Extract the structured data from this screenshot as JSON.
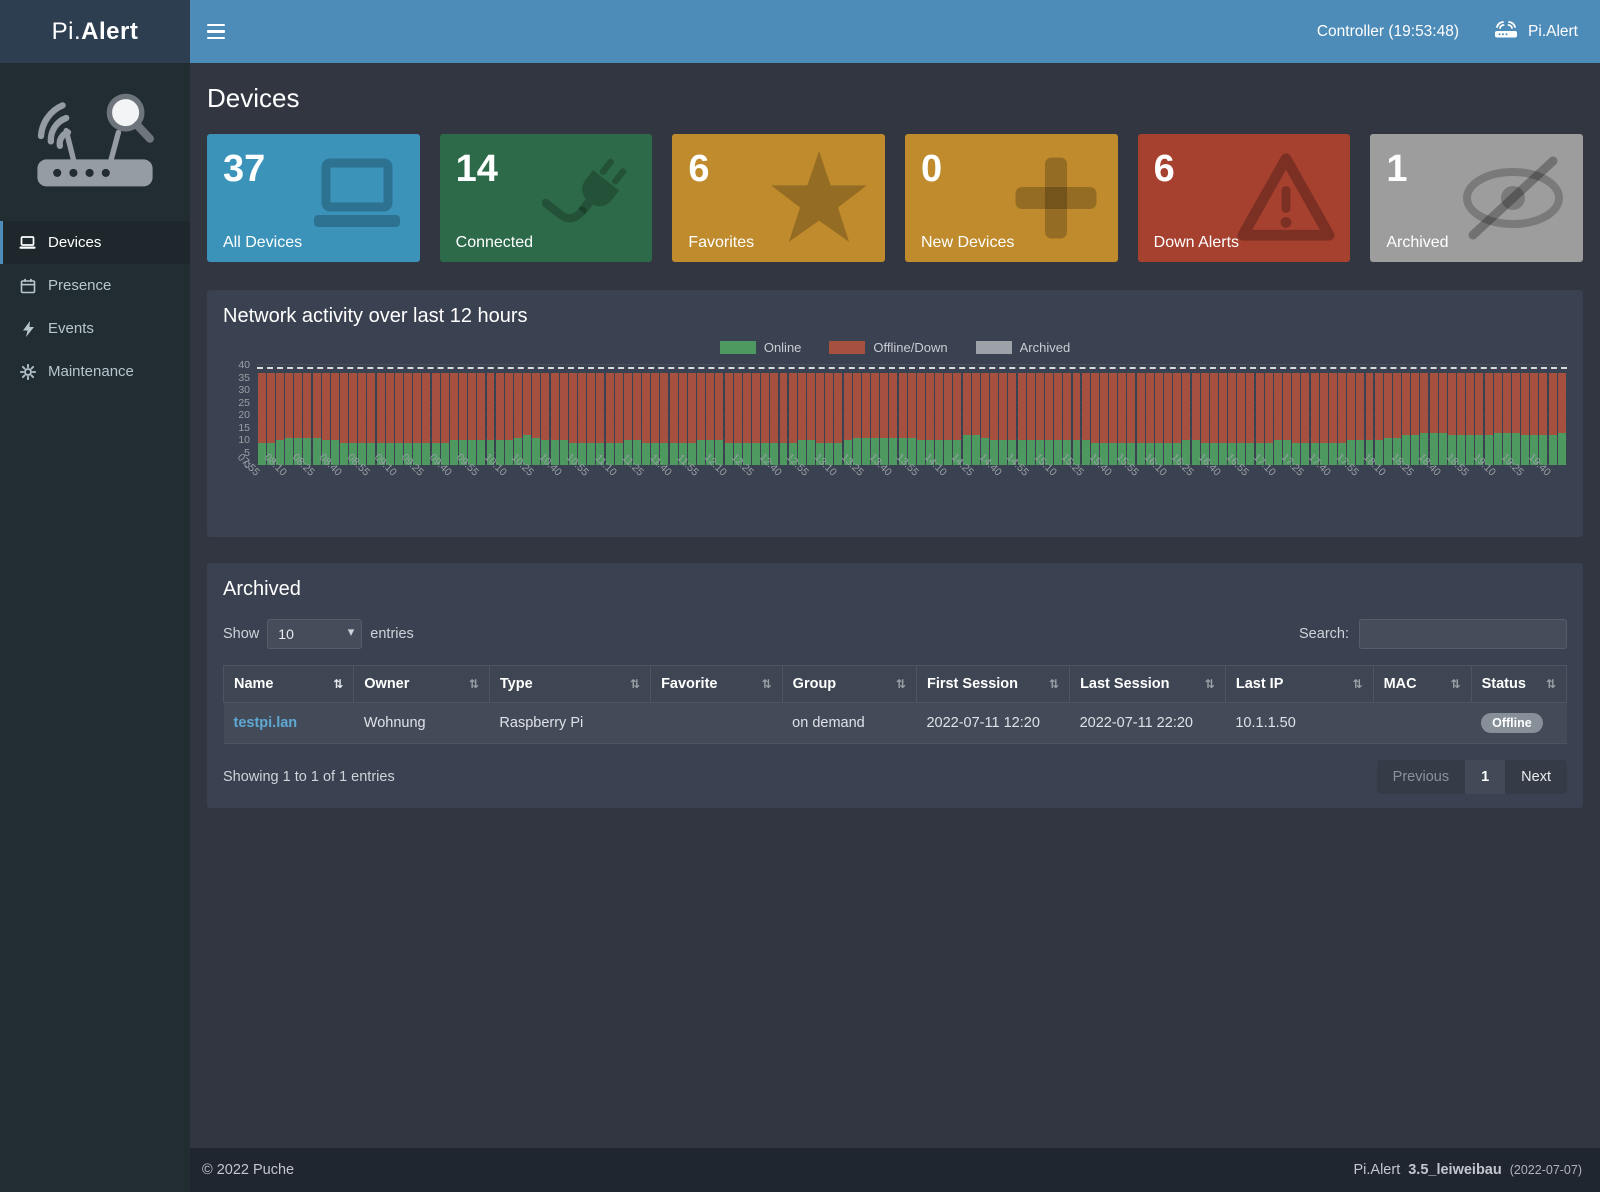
{
  "topbar": {
    "brand_pi": "Pi.",
    "brand_alert": "Alert",
    "controller": "Controller (19:53:48)",
    "right_brand": "Pi.Alert"
  },
  "sidebar": {
    "items": [
      {
        "label": "Devices",
        "icon": "laptop-icon",
        "active": true
      },
      {
        "label": "Presence",
        "icon": "calendar-icon",
        "active": false
      },
      {
        "label": "Events",
        "icon": "bolt-icon",
        "active": false
      },
      {
        "label": "Maintenance",
        "icon": "gear-icon",
        "active": false
      }
    ]
  },
  "page": {
    "title": "Devices"
  },
  "cards": [
    {
      "value": "37",
      "label": "All Devices",
      "color": "#3b93ba",
      "icon": "laptop-icon"
    },
    {
      "value": "14",
      "label": "Connected",
      "color": "#2d6a4a",
      "icon": "plug-icon"
    },
    {
      "value": "6",
      "label": "Favorites",
      "color": "#bf8b2d",
      "icon": "star-icon"
    },
    {
      "value": "0",
      "label": "New Devices",
      "color": "#bf8b2d",
      "icon": "plus-icon"
    },
    {
      "value": "6",
      "label": "Down Alerts",
      "color": "#a6402f",
      "icon": "warning-icon"
    },
    {
      "value": "1",
      "label": "Archived",
      "color": "#9d9d9d",
      "icon": "eye-slash-icon"
    }
  ],
  "chart_panel": {
    "title": "Network activity over last 12 hours"
  },
  "chart_data": {
    "type": "bar",
    "stacked": true,
    "title": "Network activity over last 12 hours",
    "legend_position": "top",
    "grid": true,
    "ylim": [
      0,
      40
    ],
    "yticks": [
      0,
      5,
      10,
      15,
      20,
      25,
      30,
      35,
      40
    ],
    "bar_count": 143,
    "bars_per_label": 3,
    "dashed_line_y": 38.5,
    "x_tick_labels": [
      "07:55",
      "08:10",
      "08:25",
      "08:40",
      "08:55",
      "09:10",
      "09:25",
      "09:40",
      "09:55",
      "10:10",
      "10:25",
      "10:40",
      "10:55",
      "11:10",
      "11:25",
      "11:40",
      "11:55",
      "12:10",
      "12:25",
      "12:40",
      "12:55",
      "13:10",
      "13:25",
      "13:40",
      "13:55",
      "14:10",
      "14:25",
      "14:40",
      "14:55",
      "15:10",
      "15:25",
      "15:40",
      "15:55",
      "16:10",
      "16:25",
      "16:40",
      "16:55",
      "17:10",
      "17:25",
      "17:40",
      "17:55",
      "18:10",
      "18:25",
      "18:40",
      "18:55",
      "19:10",
      "19:25",
      "19:40"
    ],
    "series": [
      {
        "name": "Online",
        "color": "#4d9960",
        "values": [
          9,
          9,
          10,
          11,
          11,
          11,
          11,
          10,
          10,
          9,
          9,
          9,
          9,
          9,
          9,
          9,
          9,
          9,
          9,
          9,
          9,
          10,
          10,
          10,
          10,
          10,
          10,
          10,
          11,
          12,
          11,
          10,
          10,
          10,
          9,
          9,
          9,
          9,
          9,
          9,
          10,
          10,
          9,
          9,
          9,
          9,
          9,
          9,
          10,
          10,
          10,
          9,
          9,
          9,
          9,
          9,
          9,
          9,
          9,
          10,
          10,
          9,
          9,
          9,
          10,
          11,
          11,
          11,
          11,
          11,
          11,
          11,
          10,
          10,
          10,
          10,
          10,
          12,
          12,
          11,
          10,
          10,
          10,
          10,
          10,
          10,
          10,
          10,
          10,
          10,
          10,
          9,
          9,
          9,
          9,
          9,
          9,
          9,
          9,
          9,
          9,
          10,
          10,
          9,
          9,
          9,
          9,
          9,
          9,
          9,
          9,
          10,
          10,
          9,
          9,
          9,
          9,
          9,
          9,
          10,
          10,
          10,
          10,
          11,
          11,
          12,
          12,
          13,
          13,
          13,
          12,
          12,
          12,
          12,
          12,
          13,
          13,
          13,
          12,
          12,
          12,
          12,
          13
        ]
      },
      {
        "name": "Offline/Down",
        "color": "#a65140",
        "values": [
          28,
          28,
          27,
          26,
          26,
          26,
          26,
          27,
          27,
          28,
          28,
          28,
          28,
          28,
          28,
          28,
          28,
          28,
          28,
          28,
          28,
          27,
          27,
          27,
          27,
          27,
          27,
          27,
          26,
          25,
          26,
          27,
          27,
          27,
          28,
          28,
          28,
          28,
          28,
          28,
          27,
          27,
          28,
          28,
          28,
          28,
          28,
          28,
          27,
          27,
          27,
          28,
          28,
          28,
          28,
          28,
          28,
          28,
          28,
          27,
          27,
          28,
          28,
          28,
          27,
          26,
          26,
          26,
          26,
          26,
          26,
          26,
          27,
          27,
          27,
          27,
          27,
          25,
          25,
          26,
          27,
          27,
          27,
          27,
          27,
          27,
          27,
          27,
          27,
          27,
          27,
          28,
          28,
          28,
          28,
          28,
          28,
          28,
          28,
          28,
          28,
          27,
          27,
          28,
          28,
          28,
          28,
          28,
          28,
          28,
          28,
          27,
          27,
          28,
          28,
          28,
          28,
          28,
          28,
          27,
          27,
          27,
          27,
          26,
          26,
          25,
          25,
          24,
          24,
          24,
          25,
          25,
          25,
          25,
          25,
          24,
          24,
          24,
          25,
          25,
          25,
          25,
          24
        ]
      },
      {
        "name": "Archived",
        "color": "#9da1a8",
        "values_constant": 0
      }
    ]
  },
  "archived": {
    "title": "Archived",
    "show_label": "Show",
    "page_size": "10",
    "entries_label": "entries",
    "search_label": "Search:",
    "sort_icon": "⇅",
    "columns": [
      "Name",
      "Owner",
      "Type",
      "Favorite",
      "Group",
      "First Session",
      "Last Session",
      "Last IP",
      "MAC",
      "Status"
    ],
    "rows": [
      [
        "testpi.lan",
        "Wohnung",
        "Raspberry Pi",
        "",
        "on demand",
        "2022-07-11  12:20",
        "2022-07-11  22:20",
        "10.1.1.50",
        "",
        "Offline"
      ]
    ],
    "summary": "Showing 1 to 1 of 1 entries",
    "pagination": {
      "previous": "Previous",
      "page": "1",
      "next": "Next"
    }
  },
  "footer": {
    "left": "© 2022 Puche",
    "brand": "Pi.Alert",
    "version": "3.5_leiweibau",
    "date": "(2022-07-07)"
  }
}
